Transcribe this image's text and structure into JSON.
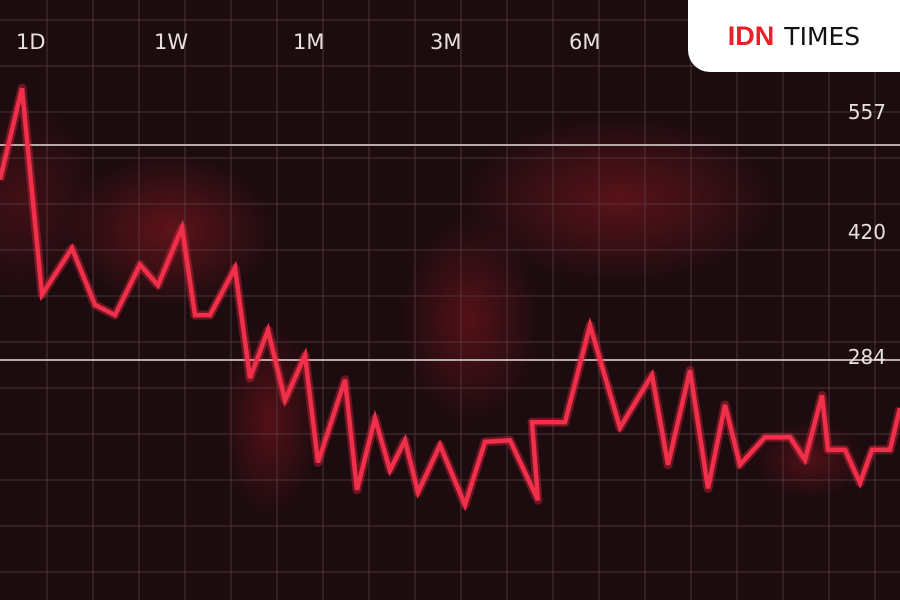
{
  "logo": {
    "brand_red": "IDN",
    "brand_dark": "TIMES"
  },
  "chart_data": {
    "type": "line",
    "timeframes": [
      "1D",
      "1W",
      "1M",
      "3M",
      "6M"
    ],
    "y_tick_labels": [
      "557",
      "420",
      "284"
    ],
    "grid": true,
    "line_color": "#f0304a",
    "values": [
      513,
      629,
      367,
      426,
      354,
      341,
      405,
      379,
      452,
      341,
      341,
      401,
      261,
      322,
      233,
      290,
      154,
      259,
      119,
      210,
      144,
      182,
      116,
      176,
      100,
      180,
      182,
      106,
      205,
      205,
      328,
      198,
      265,
      151,
      271,
      121,
      227,
      151,
      186,
      186,
      157,
      239,
      170,
      170,
      128,
      170,
      170,
      223
    ]
  }
}
